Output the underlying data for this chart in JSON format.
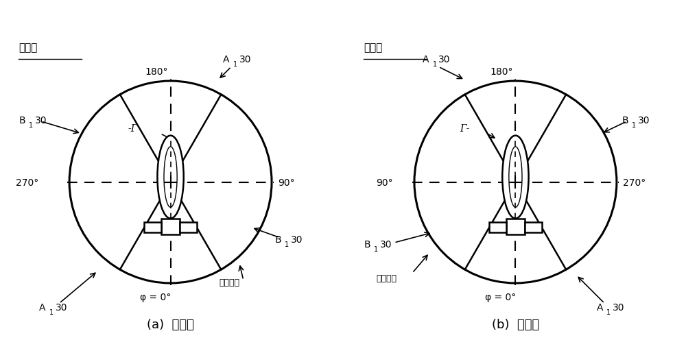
{
  "fig_width": 10.0,
  "fig_height": 5.31,
  "bg_color": "#ffffff",
  "left_panel": {
    "title": "上旋翅",
    "subtitle": "(a)  上旋翅",
    "label_180": "180°",
    "label_0": "φ = 0°",
    "label_90": "90°",
    "label_270": "270°",
    "rotate_label": "旋转方向",
    "gamma_label": "-Γ",
    "ang1_deg": 120,
    "ang2_deg": 30
  },
  "right_panel": {
    "title": "下旋翅",
    "subtitle": "(b)  下旋翅",
    "label_180": "180°",
    "label_0": "φ = 0°",
    "label_90": "90°",
    "label_270": "270°",
    "rotate_label": "旋转方向",
    "gamma_label": "Γ-",
    "ang1_deg": 60,
    "ang2_deg": 150
  }
}
